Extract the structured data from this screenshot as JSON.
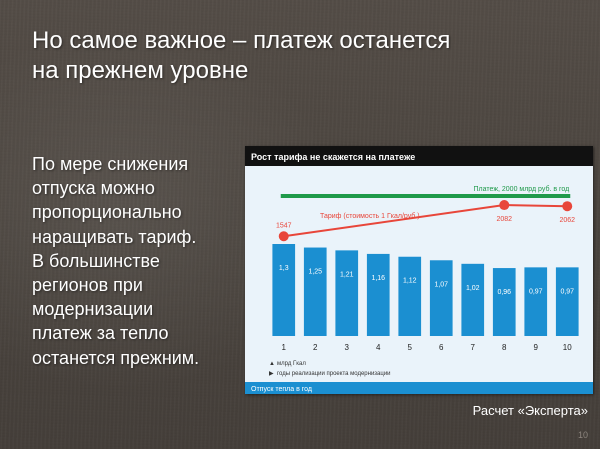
{
  "slide": {
    "title_line1": "Но самое важное – платеж останется",
    "title_line2": "на прежнем уровне",
    "body_lines": [
      "По мере снижения",
      "отпуска можно",
      "пропорционально",
      "наращивать тариф.",
      "В большинстве",
      "регионов при",
      "модернизации",
      "платеж за тепло",
      "останется прежним."
    ],
    "caption": "Расчет «Эксперта»",
    "page_number": "10"
  },
  "colors": {
    "bar": "#1b8fd1",
    "tariff_line": "#e8463a",
    "payment_line": "#1f9a4a",
    "chart_header": "#111111",
    "chart_bg": "#eaf3fa",
    "footer_bar": "#1b8fd1"
  },
  "chart_data": {
    "type": "bar",
    "title": "Рост тарифа не скажется на платеже",
    "categories": [
      "1",
      "2",
      "3",
      "4",
      "5",
      "6",
      "7",
      "8",
      "9",
      "10"
    ],
    "series": [
      {
        "name": "млрд Гкал",
        "values": [
          1.3,
          1.25,
          1.21,
          1.16,
          1.12,
          1.07,
          1.02,
          0.96,
          0.97,
          0.97
        ],
        "labels": [
          "1,3",
          "1,25",
          "1,21",
          "1,16",
          "1,12",
          "1,07",
          "1,02",
          "0,96",
          "0,97",
          "0,97"
        ]
      }
    ],
    "tariff_line": {
      "label": "Тариф (стоимость 1 Гкал/руб.)",
      "points": [
        {
          "category": "1",
          "value": 1547,
          "label": "1547"
        },
        {
          "category": "8",
          "value": 2082,
          "label": "2082"
        },
        {
          "category": "10",
          "value": 2062,
          "label": "2062"
        }
      ]
    },
    "payment_line": {
      "label": "Платеж, 2000 млрд руб. в год",
      "value": 2000
    },
    "legend": [
      "млрд Гкал",
      "годы реализации проекта модернизации"
    ],
    "footer": "Отпуск тепла в год",
    "grid": false
  }
}
